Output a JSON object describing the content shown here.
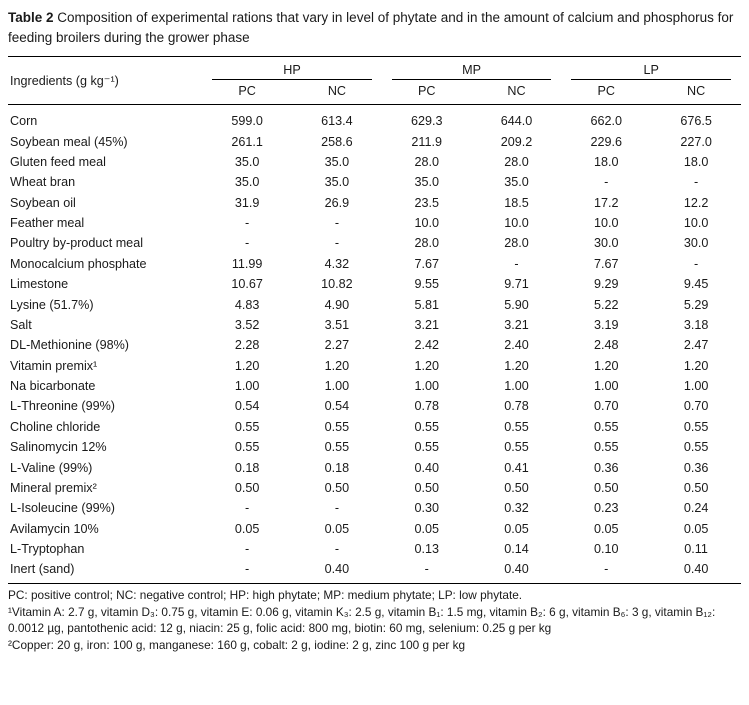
{
  "caption": {
    "label": "Table 2",
    "text": "Composition of experimental rations that vary in level of phytate and in the amount of calcium and phosphorus for feeding broilers during the grower phase"
  },
  "table": {
    "ingredient_header": "Ingredients (g kg⁻¹)",
    "groups": [
      "HP",
      "MP",
      "LP"
    ],
    "subcolumns": [
      "PC",
      "NC"
    ],
    "rows": [
      {
        "ingredient": "Corn",
        "values": [
          "599.0",
          "613.4",
          "629.3",
          "644.0",
          "662.0",
          "676.5"
        ]
      },
      {
        "ingredient": "Soybean meal (45%)",
        "values": [
          "261.1",
          "258.6",
          "211.9",
          "209.2",
          "229.6",
          "227.0"
        ]
      },
      {
        "ingredient": "Gluten feed meal",
        "values": [
          "35.0",
          "35.0",
          "28.0",
          "28.0",
          "18.0",
          "18.0"
        ]
      },
      {
        "ingredient": "Wheat bran",
        "values": [
          "35.0",
          "35.0",
          "35.0",
          "35.0",
          "-",
          "-"
        ]
      },
      {
        "ingredient": "Soybean oil",
        "values": [
          "31.9",
          "26.9",
          "23.5",
          "18.5",
          "17.2",
          "12.2"
        ]
      },
      {
        "ingredient": "Feather meal",
        "values": [
          "-",
          "-",
          "10.0",
          "10.0",
          "10.0",
          "10.0"
        ]
      },
      {
        "ingredient": "Poultry by-product meal",
        "values": [
          "-",
          "-",
          "28.0",
          "28.0",
          "30.0",
          "30.0"
        ]
      },
      {
        "ingredient": "Monocalcium phosphate",
        "values": [
          "11.99",
          "4.32",
          "7.67",
          "-",
          "7.67",
          "-"
        ]
      },
      {
        "ingredient": "Limestone",
        "values": [
          "10.67",
          "10.82",
          "9.55",
          "9.71",
          "9.29",
          "9.45"
        ]
      },
      {
        "ingredient": "Lysine (51.7%)",
        "values": [
          "4.83",
          "4.90",
          "5.81",
          "5.90",
          "5.22",
          "5.29"
        ]
      },
      {
        "ingredient": "Salt",
        "values": [
          "3.52",
          "3.51",
          "3.21",
          "3.21",
          "3.19",
          "3.18"
        ]
      },
      {
        "ingredient": "DL-Methionine (98%)",
        "values": [
          "2.28",
          "2.27",
          "2.42",
          "2.40",
          "2.48",
          "2.47"
        ]
      },
      {
        "ingredient": "Vitamin premix¹",
        "values": [
          "1.20",
          "1.20",
          "1.20",
          "1.20",
          "1.20",
          "1.20"
        ]
      },
      {
        "ingredient": "Na bicarbonate",
        "values": [
          "1.00",
          "1.00",
          "1.00",
          "1.00",
          "1.00",
          "1.00"
        ]
      },
      {
        "ingredient": "L-Threonine (99%)",
        "values": [
          "0.54",
          "0.54",
          "0.78",
          "0.78",
          "0.70",
          "0.70"
        ]
      },
      {
        "ingredient": "Choline chloride",
        "values": [
          "0.55",
          "0.55",
          "0.55",
          "0.55",
          "0.55",
          "0.55"
        ]
      },
      {
        "ingredient": "Salinomycin 12%",
        "values": [
          "0.55",
          "0.55",
          "0.55",
          "0.55",
          "0.55",
          "0.55"
        ]
      },
      {
        "ingredient": "L-Valine (99%)",
        "values": [
          "0.18",
          "0.18",
          "0.40",
          "0.41",
          "0.36",
          "0.36"
        ]
      },
      {
        "ingredient": "Mineral premix²",
        "values": [
          "0.50",
          "0.50",
          "0.50",
          "0.50",
          "0.50",
          "0.50"
        ]
      },
      {
        "ingredient": "L-Isoleucine (99%)",
        "values": [
          "-",
          "-",
          "0.30",
          "0.32",
          "0.23",
          "0.24"
        ]
      },
      {
        "ingredient": "Avilamycin 10%",
        "values": [
          "0.05",
          "0.05",
          "0.05",
          "0.05",
          "0.05",
          "0.05"
        ]
      },
      {
        "ingredient": "L-Tryptophan",
        "values": [
          "-",
          "-",
          "0.13",
          "0.14",
          "0.10",
          "0.11"
        ]
      },
      {
        "ingredient": "Inert (sand)",
        "values": [
          "-",
          "0.40",
          "-",
          "0.40",
          "-",
          "0.40"
        ]
      }
    ]
  },
  "footnotes": [
    "PC: positive control; NC: negative control; HP: high phytate; MP: medium phytate; LP: low phytate.",
    "¹Vitamin A: 2.7 g, vitamin D₃: 0.75 g, vitamin E: 0.06 g, vitamin K₃: 2.5 g, vitamin B₁: 1.5 mg, vitamin B₂: 6 g, vitamin B₆: 3 g, vitamin B₁₂: 0.0012 µg, pantothenic acid: 12 g, niacin: 25 g, folic acid: 800 mg, biotin: 60 mg, selenium: 0.25 g per kg",
    "²Copper: 20 g, iron: 100 g, manganese: 160 g, cobalt: 2 g, iodine: 2 g, zinc 100 g per kg"
  ]
}
